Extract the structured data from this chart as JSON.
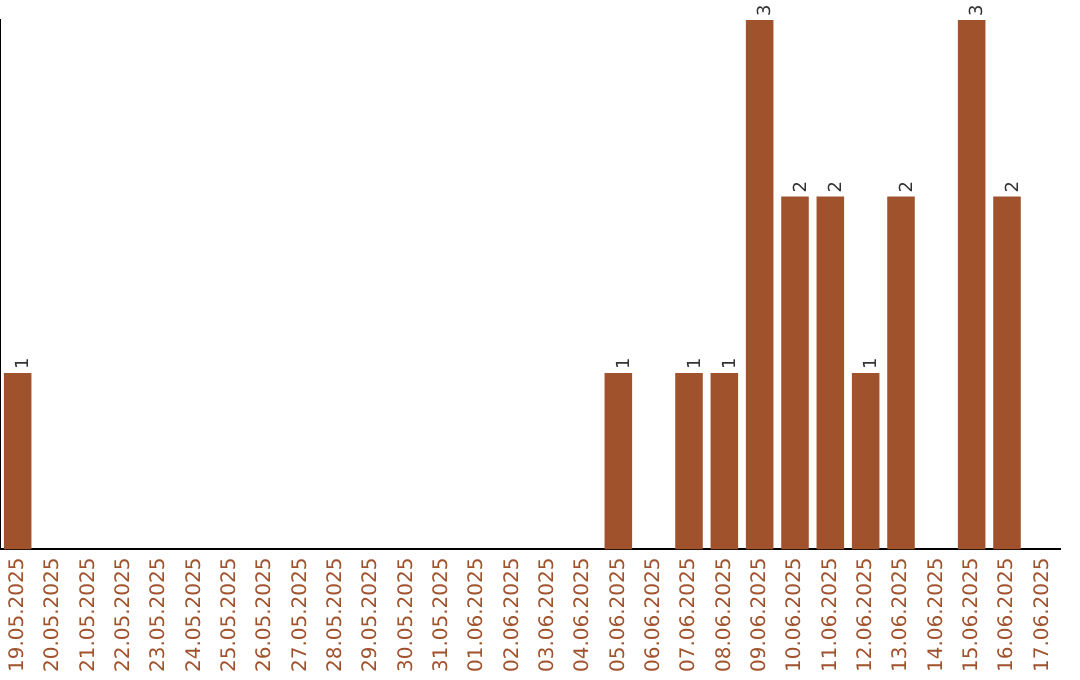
{
  "chart_data": {
    "type": "bar",
    "categories": [
      "19.05.2025",
      "20.05.2025",
      "21.05.2025",
      "22.05.2025",
      "23.05.2025",
      "24.05.2025",
      "25.05.2025",
      "26.05.2025",
      "27.05.2025",
      "28.05.2025",
      "29.05.2025",
      "30.05.2025",
      "31.05.2025",
      "01.06.2025",
      "02.06.2025",
      "03.06.2025",
      "04.06.2025",
      "05.06.2025",
      "06.06.2025",
      "07.06.2025",
      "08.06.2025",
      "09.06.2025",
      "10.06.2025",
      "11.06.2025",
      "12.06.2025",
      "13.06.2025",
      "14.06.2025",
      "15.06.2025",
      "16.06.2025",
      "17.06.2025"
    ],
    "values": [
      1,
      0,
      0,
      0,
      0,
      0,
      0,
      0,
      0,
      0,
      0,
      0,
      0,
      0,
      0,
      0,
      0,
      1,
      0,
      1,
      1,
      3,
      2,
      2,
      1,
      2,
      0,
      3,
      2,
      0
    ],
    "value_labels": [
      "1",
      null,
      null,
      null,
      null,
      null,
      null,
      null,
      null,
      null,
      null,
      null,
      null,
      null,
      null,
      null,
      null,
      "1",
      null,
      "1",
      "1",
      "3",
      "2",
      "2",
      "1",
      "2",
      null,
      "3",
      "2",
      null
    ],
    "color": "#a0522d",
    "ylim": [
      0,
      3
    ],
    "tick_labels": "x",
    "grid": false,
    "legend": false
  }
}
